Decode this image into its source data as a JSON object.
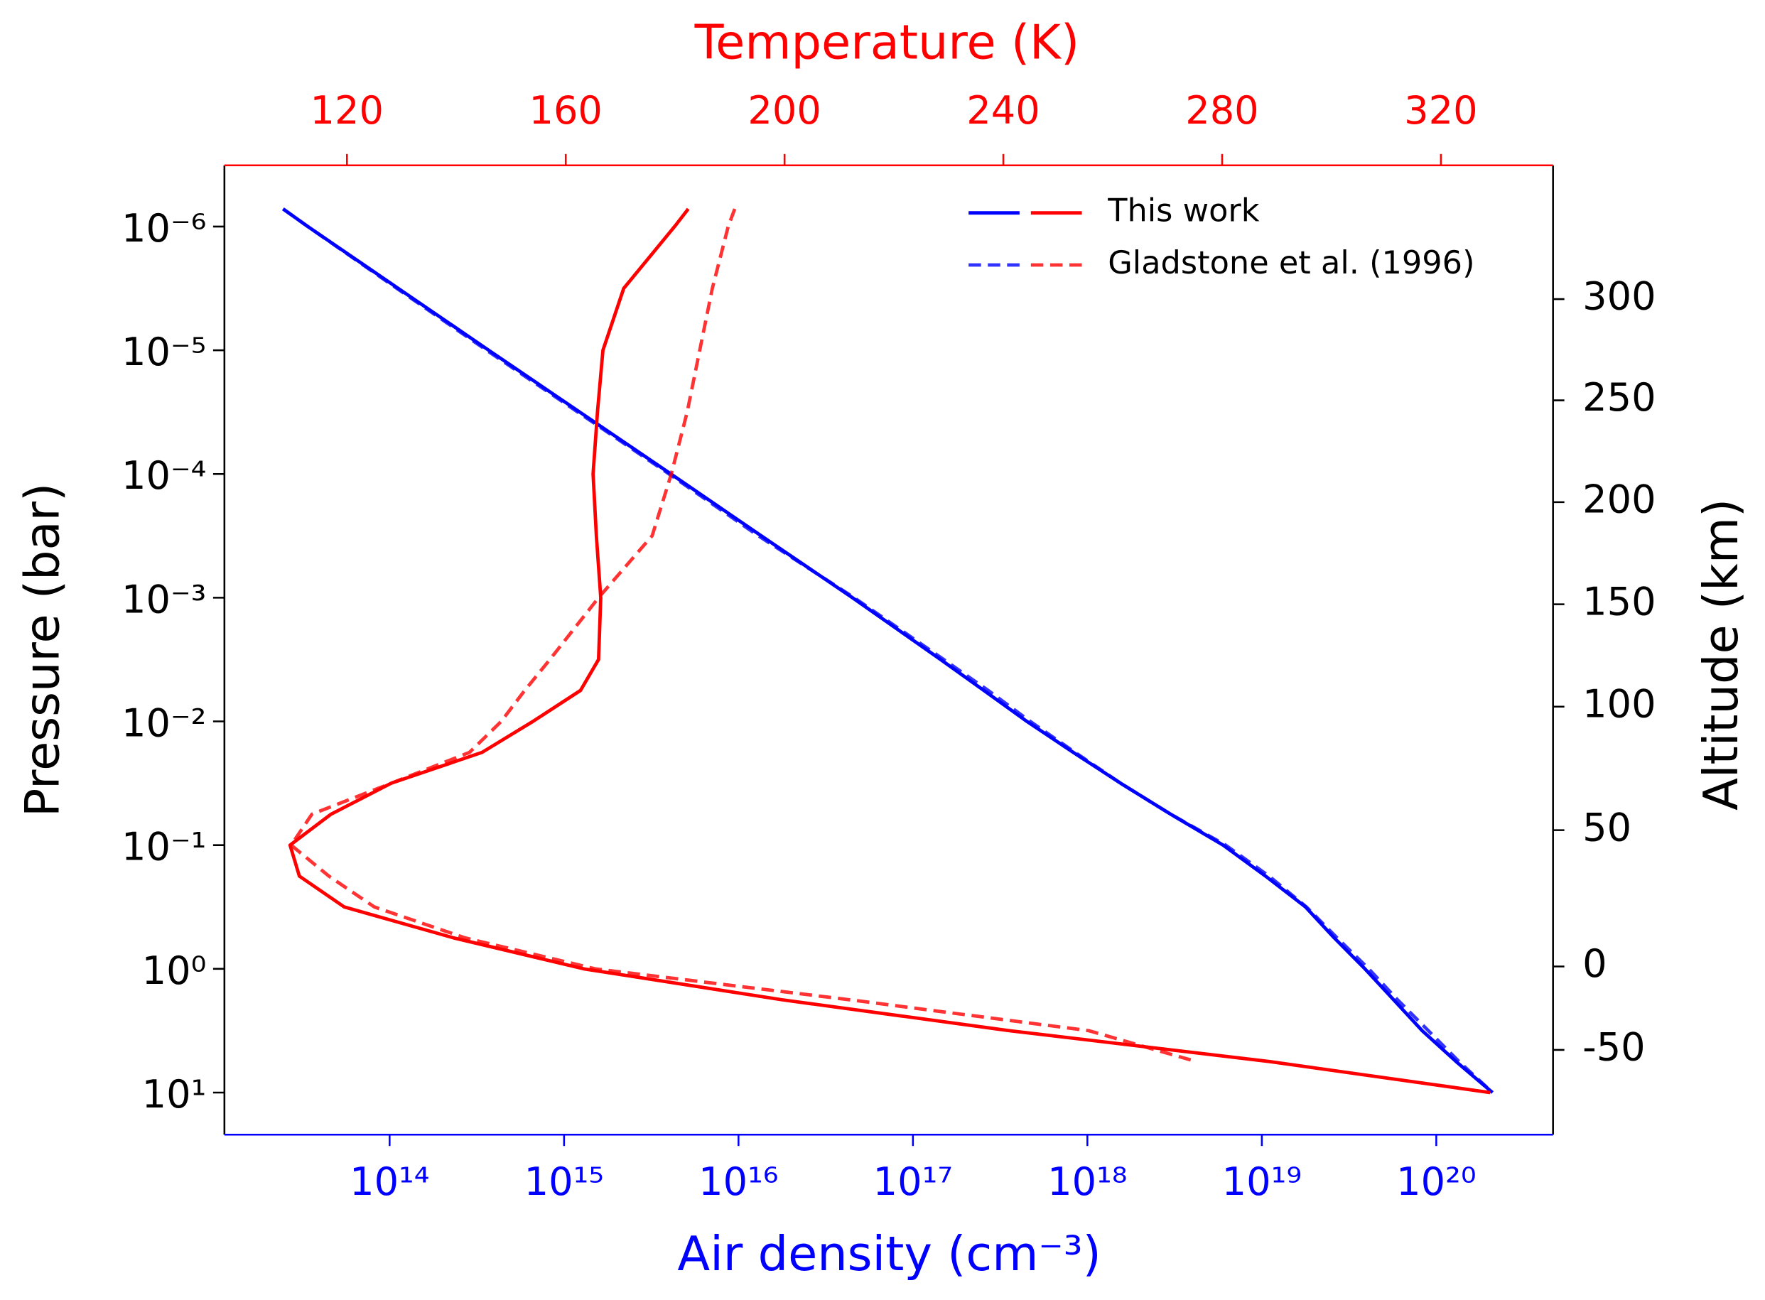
{
  "chart_data": {
    "type": "line",
    "xlabel": "Air density (cm⁻³)",
    "xscale": "log",
    "xlim": [
      11300000000000.0,
      4.67e+20
    ],
    "xticks": [
      {
        "value": 100000000000000.0,
        "label": "10¹⁴"
      },
      {
        "value": 1000000000000000.0,
        "label": "10¹⁵"
      },
      {
        "value": 1e+16,
        "label": "10¹⁶"
      },
      {
        "value": 1e+17,
        "label": "10¹⁷"
      },
      {
        "value": 1e+18,
        "label": "10¹⁸"
      },
      {
        "value": 1e+19,
        "label": "10¹⁹"
      },
      {
        "value": 1e+20,
        "label": "10²⁰"
      }
    ],
    "xcolor": "#0000ff",
    "x2label": "Temperature (K)",
    "x2lim": [
      97.6,
      340.5
    ],
    "x2ticks": [
      120,
      160,
      200,
      240,
      280,
      320
    ],
    "x2color": "#ff0000",
    "ylabel": "Pressure (bar)",
    "yscale": "log",
    "yinverted": true,
    "ylim": [
      3.2e-07,
      21.9
    ],
    "yticks": [
      {
        "value": 1e-06,
        "label": "10⁻⁶"
      },
      {
        "value": 1e-05,
        "label": "10⁻⁵"
      },
      {
        "value": 0.0001,
        "label": "10⁻⁴"
      },
      {
        "value": 0.001,
        "label": "10⁻³"
      },
      {
        "value": 0.01,
        "label": "10⁻²"
      },
      {
        "value": 0.1,
        "label": "10⁻¹"
      },
      {
        "value": 1,
        "label": "10⁰"
      },
      {
        "value": 10,
        "label": "10¹"
      }
    ],
    "y2label": "Altitude (km)",
    "y2ticks": [
      300,
      250,
      200,
      150,
      100,
      50,
      0,
      -50
    ],
    "y2tick_pressures": [
      3.86e-06,
      2.54e-05,
      0.000169,
      0.00113,
      0.0076,
      0.0757,
      0.957,
      4.52
    ],
    "legend": "upper right",
    "y": [
      7.2e-07,
      1e-06,
      3.16e-06,
      1e-05,
      3.16e-05,
      0.0001,
      0.000316,
      0.001,
      0.00316,
      0.00562,
      0.01,
      0.0178,
      0.0316,
      0.0562,
      0.1,
      0.178,
      0.316,
      0.562,
      1,
      1.78,
      3.16,
      5.62,
      10
    ],
    "series": [
      {
        "name": "This work",
        "linestyle": "solid",
        "x": [
          24500000000000.0,
          34000000000000.0,
          112000000000000.0,
          370000000000000.0,
          1230000000000000.0,
          4100000000000000.0,
          1.35e+16,
          4.5e+16,
          1.44e+17,
          2.55e+17,
          4.5e+17,
          8.3e+17,
          1.55e+18,
          3e+18,
          6e+18,
          1.05e+19,
          1.78e+19,
          2.6e+19,
          3.9e+19,
          5.7e+19,
          8.3e+19,
          1.3e+20,
          2.1e+20
        ],
        "x2": [
          182.4,
          179.9,
          170.6,
          166.8,
          165.8,
          165.0,
          165.6,
          166.4,
          166.0,
          162.7,
          154.0,
          144.7,
          128.1,
          117.1,
          109.6,
          111.3,
          119.5,
          139.5,
          163.3,
          199.6,
          241.1,
          288.7,
          329.0
        ]
      },
      {
        "name": "Gladstone et al. (1996)",
        "linestyle": "dashed",
        "x": [
          24500000000000.0,
          34000000000000.0,
          110000000000000.0,
          360000000000000.0,
          1200000000000000.0,
          4000000000000000.0,
          1.3e+16,
          4.6e+16,
          1.5e+17,
          2.7e+17,
          4.7e+17,
          8.5e+17,
          1.55e+18,
          3e+18,
          6.2e+18,
          1.1e+19,
          1.8e+19,
          2.7e+19,
          4.1e+19,
          6e+19,
          9e+19,
          1.35e+20,
          2.1e+20
        ],
        "x2": [
          190.9,
          189.7,
          186.8,
          184.5,
          182.2,
          179.3,
          175.8,
          166.0,
          157.1,
          152.5,
          148.2,
          142.4,
          128.1,
          113.6,
          109.8,
          116.7,
          125.0,
          141.6,
          165.4,
          212.0,
          255.6,
          275.3,
          null
        ]
      }
    ]
  }
}
